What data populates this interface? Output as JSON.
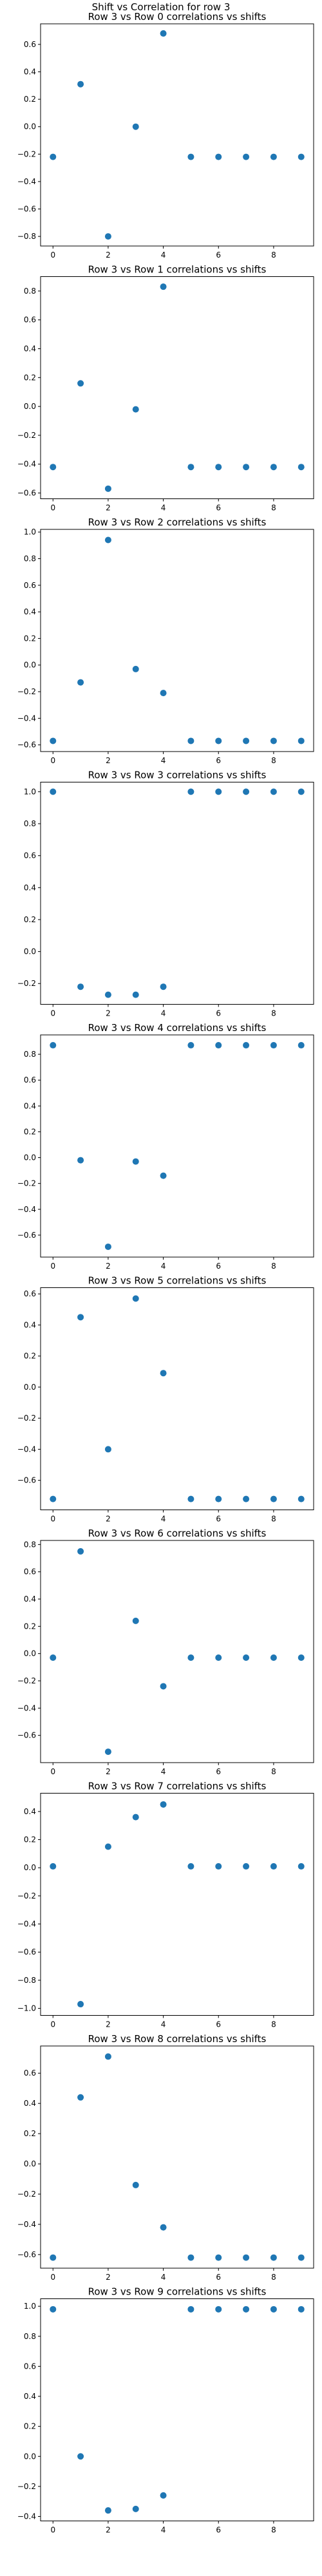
{
  "figure_title": "Shift vs Correlation for row 3",
  "chart_data": [
    {
      "type": "scatter",
      "title": "Row 3 vs Row 0 correlations vs shifts",
      "x": [
        0,
        1,
        2,
        3,
        4,
        5,
        6,
        7,
        8,
        9
      ],
      "y": [
        -0.22,
        0.31,
        -0.8,
        0.0,
        0.68,
        -0.22,
        -0.22,
        -0.22,
        -0.22,
        -0.22
      ],
      "xlim": [
        -0.45,
        9.45
      ],
      "ylim": [
        -0.87,
        0.75
      ],
      "xticks": [
        0,
        2,
        4,
        6,
        8
      ],
      "yticks": [
        -0.8,
        -0.6,
        -0.4,
        -0.2,
        0.0,
        0.2,
        0.4,
        0.6
      ]
    },
    {
      "type": "scatter",
      "title": "Row 3 vs Row 1 correlations vs shifts",
      "x": [
        0,
        1,
        2,
        3,
        4,
        5,
        6,
        7,
        8,
        9
      ],
      "y": [
        -0.42,
        0.16,
        -0.57,
        -0.02,
        0.83,
        -0.42,
        -0.42,
        -0.42,
        -0.42,
        -0.42
      ],
      "xlim": [
        -0.45,
        9.45
      ],
      "ylim": [
        -0.64,
        0.9
      ],
      "xticks": [
        0,
        2,
        4,
        6,
        8
      ],
      "yticks": [
        -0.6,
        -0.4,
        -0.2,
        0.0,
        0.2,
        0.4,
        0.6,
        0.8
      ]
    },
    {
      "type": "scatter",
      "title": "Row 3 vs Row 2 correlations vs shifts",
      "x": [
        0,
        1,
        2,
        3,
        4,
        5,
        6,
        7,
        8,
        9
      ],
      "y": [
        -0.57,
        -0.13,
        0.94,
        -0.03,
        -0.21,
        -0.57,
        -0.57,
        -0.57,
        -0.57,
        -0.57
      ],
      "xlim": [
        -0.45,
        9.45
      ],
      "ylim": [
        -0.65,
        1.02
      ],
      "xticks": [
        0,
        2,
        4,
        6,
        8
      ],
      "yticks": [
        -0.6,
        -0.4,
        -0.2,
        0.0,
        0.2,
        0.4,
        0.6,
        0.8,
        1.0
      ]
    },
    {
      "type": "scatter",
      "title": "Row 3 vs Row 3 correlations vs shifts",
      "x": [
        0,
        1,
        2,
        3,
        4,
        5,
        6,
        7,
        8,
        9
      ],
      "y": [
        1.0,
        -0.22,
        -0.27,
        -0.27,
        -0.22,
        1.0,
        1.0,
        1.0,
        1.0,
        1.0
      ],
      "xlim": [
        -0.45,
        9.45
      ],
      "ylim": [
        -0.33,
        1.06
      ],
      "xticks": [
        0,
        2,
        4,
        6,
        8
      ],
      "yticks": [
        -0.2,
        0.0,
        0.2,
        0.4,
        0.6,
        0.8,
        1.0
      ]
    },
    {
      "type": "scatter",
      "title": "Row 3 vs Row 4 correlations vs shifts",
      "x": [
        0,
        1,
        2,
        3,
        4,
        5,
        6,
        7,
        8,
        9
      ],
      "y": [
        0.87,
        -0.02,
        -0.69,
        -0.03,
        -0.14,
        0.87,
        0.87,
        0.87,
        0.87,
        0.87
      ],
      "xlim": [
        -0.45,
        9.45
      ],
      "ylim": [
        -0.77,
        0.95
      ],
      "xticks": [
        0,
        2,
        4,
        6,
        8
      ],
      "yticks": [
        -0.6,
        -0.4,
        -0.2,
        0.0,
        0.2,
        0.4,
        0.6,
        0.8
      ]
    },
    {
      "type": "scatter",
      "title": "Row 3 vs Row 5 correlations vs shifts",
      "x": [
        0,
        1,
        2,
        3,
        4,
        5,
        6,
        7,
        8,
        9
      ],
      "y": [
        -0.72,
        0.45,
        -0.4,
        0.57,
        0.09,
        -0.72,
        -0.72,
        -0.72,
        -0.72,
        -0.72
      ],
      "xlim": [
        -0.45,
        9.45
      ],
      "ylim": [
        -0.79,
        0.64
      ],
      "xticks": [
        0,
        2,
        4,
        6,
        8
      ],
      "yticks": [
        -0.6,
        -0.4,
        -0.2,
        0.0,
        0.2,
        0.4,
        0.6
      ]
    },
    {
      "type": "scatter",
      "title": "Row 3 vs Row 6 correlations vs shifts",
      "x": [
        0,
        1,
        2,
        3,
        4,
        5,
        6,
        7,
        8,
        9
      ],
      "y": [
        -0.03,
        0.75,
        -0.72,
        0.24,
        -0.24,
        -0.03,
        -0.03,
        -0.03,
        -0.03,
        -0.03
      ],
      "xlim": [
        -0.45,
        9.45
      ],
      "ylim": [
        -0.8,
        0.83
      ],
      "xticks": [
        0,
        2,
        4,
        6,
        8
      ],
      "yticks": [
        -0.6,
        -0.4,
        -0.2,
        0.0,
        0.2,
        0.4,
        0.6,
        0.8
      ]
    },
    {
      "type": "scatter",
      "title": "Row 3 vs Row 7 correlations vs shifts",
      "x": [
        0,
        1,
        2,
        3,
        4,
        5,
        6,
        7,
        8,
        9
      ],
      "y": [
        0.01,
        -0.97,
        0.15,
        0.36,
        0.45,
        0.01,
        0.01,
        0.01,
        0.01,
        0.01
      ],
      "xlim": [
        -0.45,
        9.45
      ],
      "ylim": [
        -1.05,
        0.53
      ],
      "xticks": [
        0,
        2,
        4,
        6,
        8
      ],
      "yticks": [
        -1.0,
        -0.8,
        -0.6,
        -0.4,
        -0.2,
        0.0,
        0.2,
        0.4
      ]
    },
    {
      "type": "scatter",
      "title": "Row 3 vs Row 8 correlations vs shifts",
      "x": [
        0,
        1,
        2,
        3,
        4,
        5,
        6,
        7,
        8,
        9
      ],
      "y": [
        -0.62,
        0.44,
        0.71,
        -0.14,
        -0.42,
        -0.62,
        -0.62,
        -0.62,
        -0.62,
        -0.62
      ],
      "xlim": [
        -0.45,
        9.45
      ],
      "ylim": [
        -0.69,
        0.78
      ],
      "xticks": [
        0,
        2,
        4,
        6,
        8
      ],
      "yticks": [
        -0.6,
        -0.4,
        -0.2,
        0.0,
        0.2,
        0.4,
        0.6
      ]
    },
    {
      "type": "scatter",
      "title": "Row 3 vs Row 9 correlations vs shifts",
      "x": [
        0,
        1,
        2,
        3,
        4,
        5,
        6,
        7,
        8,
        9
      ],
      "y": [
        0.98,
        0.0,
        -0.36,
        -0.35,
        -0.26,
        0.98,
        0.98,
        0.98,
        0.98,
        0.98
      ],
      "xlim": [
        -0.45,
        9.45
      ],
      "ylim": [
        -0.43,
        1.05
      ],
      "xticks": [
        0,
        2,
        4,
        6,
        8
      ],
      "yticks": [
        -0.4,
        -0.2,
        0.0,
        0.2,
        0.4,
        0.6,
        0.8,
        1.0
      ]
    }
  ]
}
